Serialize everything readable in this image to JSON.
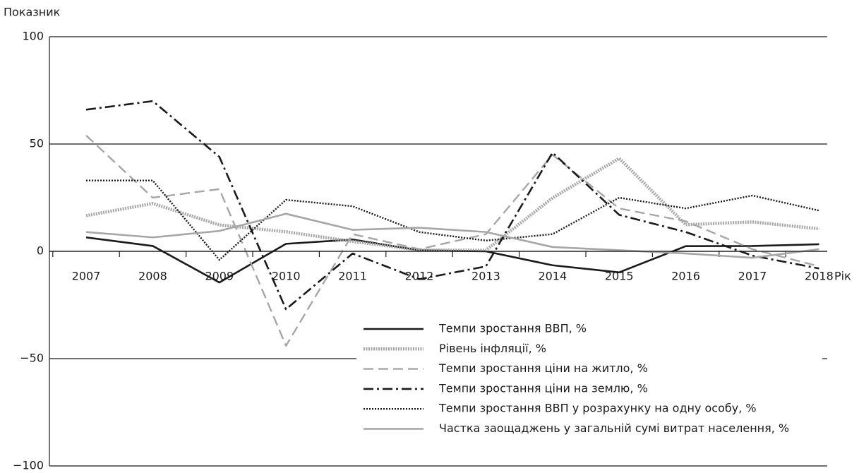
{
  "chart_data": {
    "type": "line",
    "ylabel": "Показник",
    "xlabel": "Рік",
    "categories": [
      "2007",
      "2008",
      "2009",
      "2010",
      "2011",
      "2012",
      "2013",
      "2014",
      "2015",
      "2016",
      "2017",
      "2018"
    ],
    "ylim": [
      -100,
      100
    ],
    "yticks": [
      {
        "value": -100,
        "label": "−100"
      },
      {
        "value": -50,
        "label": "−50"
      },
      0,
      50,
      100
    ],
    "grid": true,
    "series": [
      {
        "name": "Темпи зростання ВВП, %",
        "color": "#1a1a1a",
        "style": "solid",
        "values": [
          6.5,
          2.5,
          -14.5,
          3.5,
          5.5,
          0.5,
          0,
          -6.5,
          -9.8,
          2.4,
          2.5,
          3.3
        ]
      },
      {
        "name": "Рівень інфляції, %",
        "color": "#a6a6a6",
        "style": "dotted-thick",
        "values": [
          16.6,
          22.3,
          12.3,
          9.1,
          4.6,
          0.6,
          0.5,
          24.9,
          43.3,
          12.4,
          13.7,
          10.5
        ]
      },
      {
        "name": "Темпи зростання ціни на житло, %",
        "color": "#a6a6a6",
        "style": "dashed",
        "values": [
          54,
          25,
          29,
          -44,
          8,
          1,
          8,
          45,
          20,
          14,
          1,
          -7
        ]
      },
      {
        "name": "Темпи зростання ціни на землю, %",
        "color": "#1a1a1a",
        "style": "dashdot",
        "values": [
          66,
          70,
          44,
          -27,
          -1,
          -13,
          -7,
          46,
          17,
          9,
          -2,
          -8
        ]
      },
      {
        "name": "Темпи зростання ВВП у розрахунку на одну особу, %",
        "color": "#1a1a1a",
        "style": "dotted",
        "values": [
          33,
          33,
          -4,
          24,
          21,
          9,
          5,
          8,
          25,
          20,
          26,
          19
        ]
      },
      {
        "name": "Частка заощаджень у загальній сумі витрат населення, %",
        "color": "#a6a6a6",
        "style": "solid",
        "values": [
          9,
          6.5,
          9.5,
          17.5,
          10,
          11,
          9,
          2,
          0.5,
          -1,
          -3,
          1
        ]
      }
    ]
  }
}
